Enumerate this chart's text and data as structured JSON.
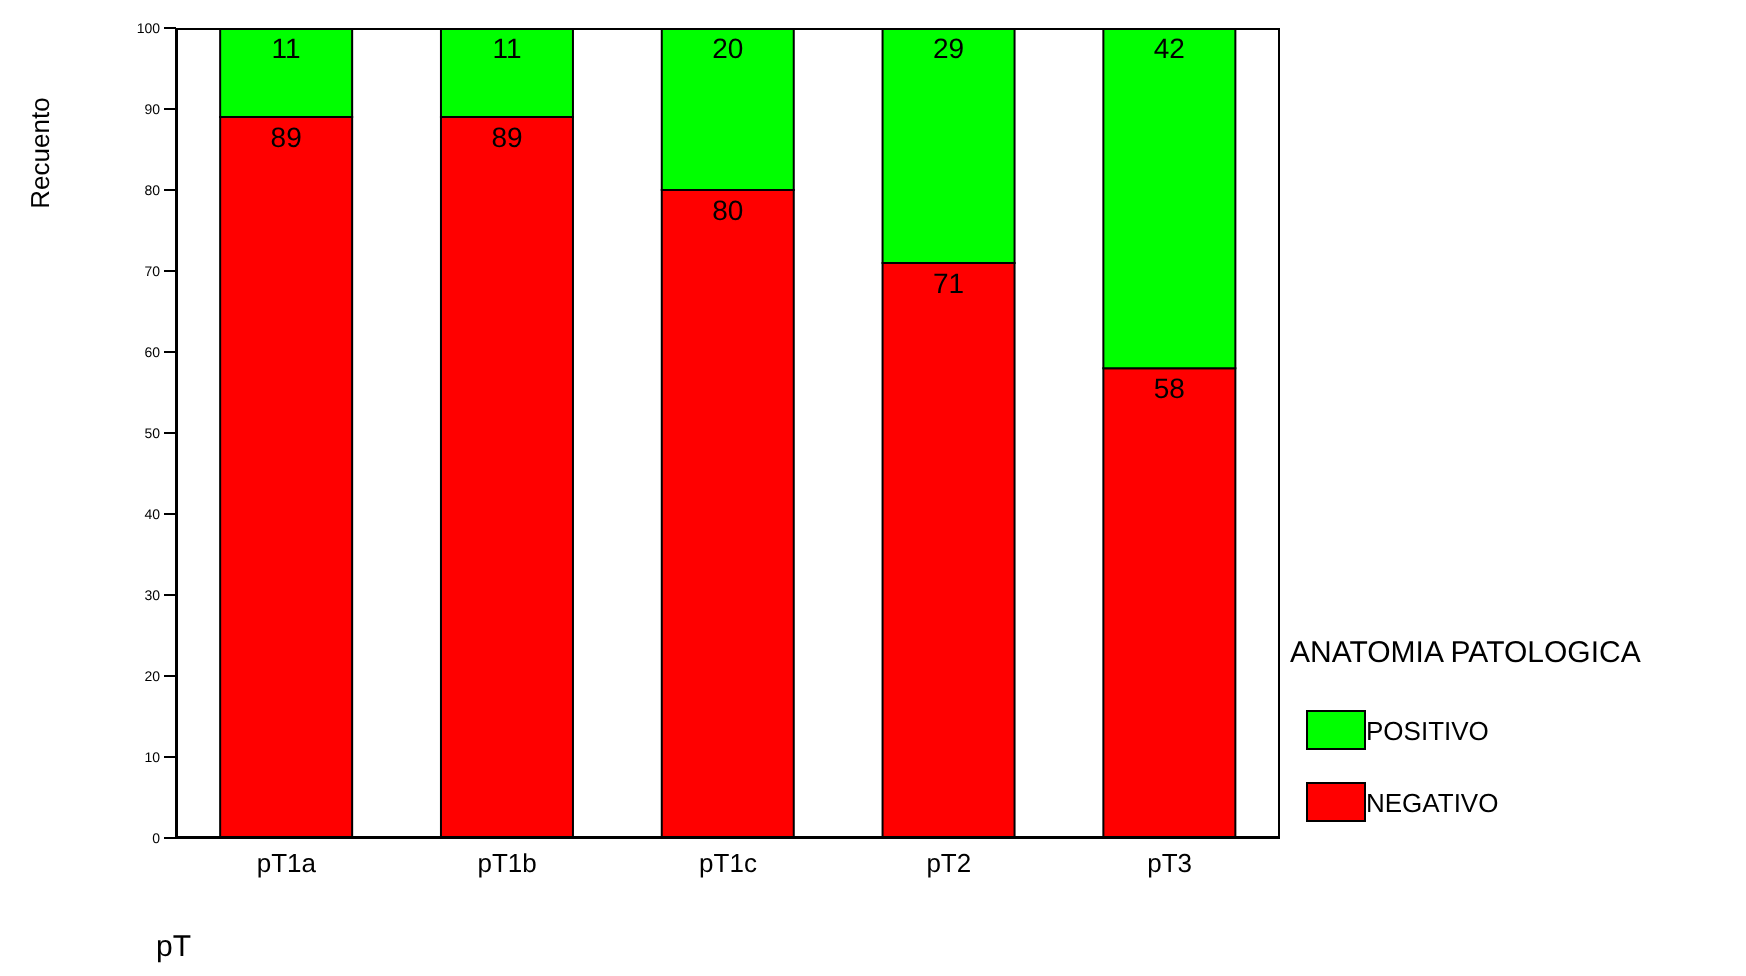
{
  "chart_data": {
    "type": "bar",
    "stacked": true,
    "categories": [
      "pT1a",
      "pT1b",
      "pT1c",
      "pT2",
      "pT3"
    ],
    "series": [
      {
        "name": "NEGATIVO",
        "color": "#ff0000",
        "values": [
          89,
          89,
          80,
          71,
          58
        ]
      },
      {
        "name": "POSITIVO",
        "color": "#00ff00",
        "values": [
          11,
          11,
          20,
          29,
          42
        ]
      }
    ],
    "ylim": [
      0,
      100
    ],
    "yticks": [
      0,
      10,
      20,
      30,
      40,
      50,
      60,
      70,
      80,
      90,
      100
    ],
    "ylabel": "Recuento",
    "xlabel": "pT",
    "legend_title": "ANATOMIA PATOLOGICA",
    "legend": "right",
    "data_labels": true,
    "grid": false
  }
}
